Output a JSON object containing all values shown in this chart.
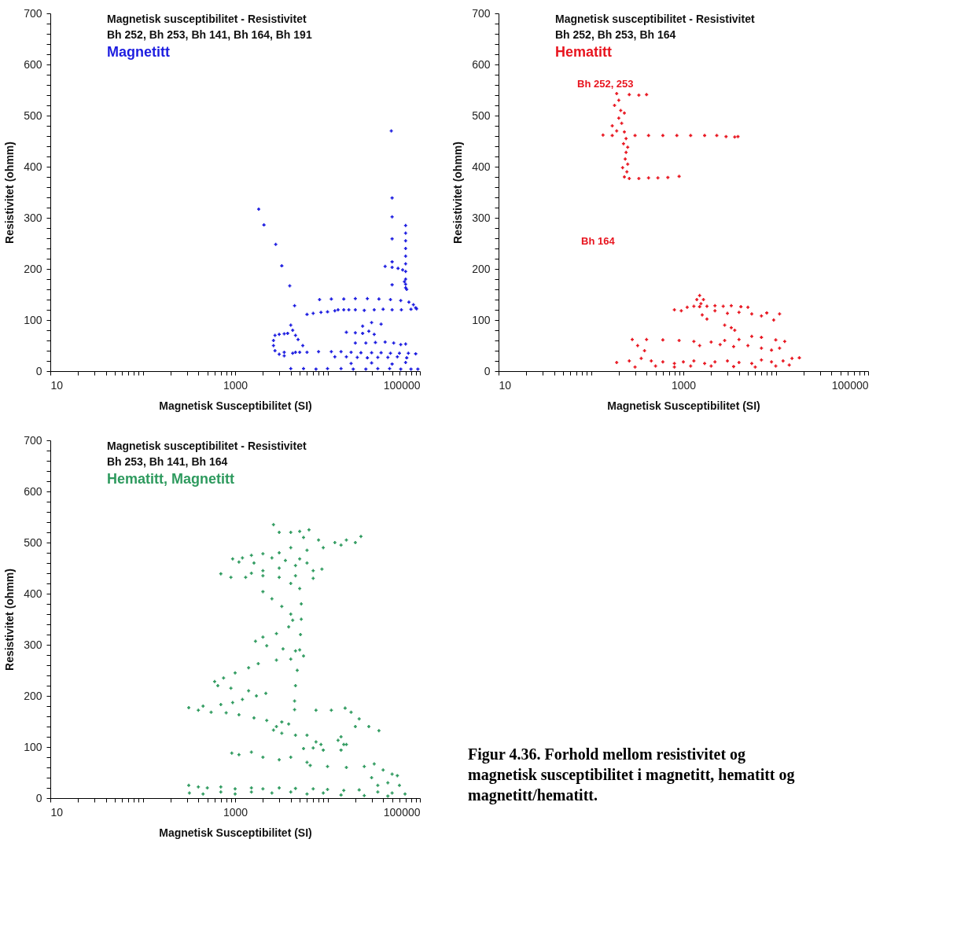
{
  "chart_data": [
    {
      "type": "scatter",
      "title": "Magnetisk susceptibilitet - Resistivitet",
      "subtitle": "Bh 252, Bh 253, Bh 141, Bh 164, Bh 191",
      "xlabel": "Magnetisk Susceptibilitet (SI)",
      "ylabel": "Resistivitet (ohmm)",
      "log": "x",
      "marker": "cross",
      "grid": false,
      "xlim": [
        10,
        100000
      ],
      "ylim": [
        0,
        700
      ],
      "xticks": [
        10,
        {
          "value": 20,
          "label": null
        },
        {
          "value": 30,
          "label": null
        },
        {
          "value": 40,
          "label": null
        },
        {
          "value": 50,
          "label": null
        },
        {
          "value": 60,
          "label": null
        },
        {
          "value": 70,
          "label": null
        },
        {
          "value": 80,
          "label": null
        },
        {
          "value": 90,
          "label": null
        },
        {
          "value": 100,
          "label": null
        },
        {
          "value": 200,
          "label": null
        },
        {
          "value": 300,
          "label": null
        },
        {
          "value": 400,
          "label": null
        },
        {
          "value": 500,
          "label": null
        },
        {
          "value": 600,
          "label": null
        },
        {
          "value": 700,
          "label": null
        },
        {
          "value": 800,
          "label": null
        },
        {
          "value": 900,
          "label": null
        },
        1000,
        {
          "value": 2000,
          "label": null
        },
        {
          "value": 3000,
          "label": null
        },
        {
          "value": 4000,
          "label": null
        },
        {
          "value": 5000,
          "label": null
        },
        {
          "value": 6000,
          "label": null
        },
        {
          "value": 7000,
          "label": null
        },
        {
          "value": 8000,
          "label": null
        },
        {
          "value": 9000,
          "label": null
        },
        {
          "value": 10000,
          "label": null
        },
        {
          "value": 20000,
          "label": null
        },
        {
          "value": 30000,
          "label": null
        },
        {
          "value": 40000,
          "label": null
        },
        {
          "value": 50000,
          "label": null
        },
        {
          "value": 60000,
          "label": null
        },
        {
          "value": 70000,
          "label": null
        },
        {
          "value": 80000,
          "label": null
        },
        {
          "value": 90000,
          "label": null
        },
        100000
      ],
      "yticks": [
        0,
        {
          "value": 20,
          "label": null
        },
        {
          "value": 40,
          "label": null
        },
        {
          "value": 60,
          "label": null
        },
        {
          "value": 80,
          "label": null
        },
        100,
        {
          "value": 120,
          "label": null
        },
        {
          "value": 140,
          "label": null
        },
        {
          "value": 160,
          "label": null
        },
        {
          "value": 180,
          "label": null
        },
        200,
        {
          "value": 220,
          "label": null
        },
        {
          "value": 240,
          "label": null
        },
        {
          "value": 260,
          "label": null
        },
        {
          "value": 280,
          "label": null
        },
        300,
        {
          "value": 320,
          "label": null
        },
        {
          "value": 340,
          "label": null
        },
        {
          "value": 360,
          "label": null
        },
        {
          "value": 380,
          "label": null
        },
        400,
        {
          "value": 420,
          "label": null
        },
        {
          "value": 440,
          "label": null
        },
        {
          "value": 460,
          "label": null
        },
        {
          "value": 480,
          "label": null
        },
        500,
        {
          "value": 520,
          "label": null
        },
        {
          "value": 540,
          "label": null
        },
        {
          "value": 560,
          "label": null
        },
        {
          "value": 580,
          "label": null
        },
        600,
        {
          "value": 620,
          "label": null
        },
        {
          "value": 640,
          "label": null
        },
        {
          "value": 660,
          "label": null
        },
        {
          "value": 680,
          "label": null
        },
        700
      ],
      "series": [
        {
          "name": "Magnetitt",
          "color": "#1c1ce0",
          "x": [
            1800,
            2050,
            2750,
            3200,
            3900,
            4400,
            49000,
            50000,
            50000,
            50000,
            50000,
            50000,
            70000,
            70000,
            70000,
            70000,
            70000,
            70000,
            70000,
            70000,
            70000,
            70000,
            72000,
            68000,
            42000,
            50000,
            58000,
            65000,
            8200,
            11000,
            15000,
            20000,
            27000,
            36000,
            48000,
            62000,
            76000,
            85000,
            90000,
            13000,
            15000,
            17000,
            20000,
            25000,
            32000,
            40000,
            50000,
            63000,
            80000,
            92000,
            6000,
            7000,
            8500,
            10000,
            12000,
            2700,
            3000,
            3400,
            3700,
            2600,
            2600,
            2700,
            3000,
            3400,
            4200,
            5000,
            5400,
            4800,
            4500,
            4200,
            4000,
            3400,
            4500,
            6000,
            8000,
            11000,
            14000,
            18000,
            23000,
            30000,
            38000,
            48000,
            60000,
            75000,
            90000,
            12000,
            16000,
            21000,
            27000,
            35000,
            45000,
            57000,
            72000,
            20000,
            26000,
            33000,
            42000,
            52000,
            62000,
            70000,
            16000,
            20000,
            24000,
            28000,
            32000,
            24000,
            30000,
            38000,
            4000,
            5500,
            7500,
            10000,
            14000,
            19000,
            26000,
            35000,
            47000,
            62000,
            80000,
            95000,
            18000,
            30000,
            50000,
            70000
          ],
          "values": [
            317,
            286,
            248,
            206,
            167,
            128,
            470,
            339,
            302,
            259,
            214,
            169,
            285,
            270,
            255,
            240,
            225,
            210,
            195,
            180,
            170,
            163,
            160,
            175,
            205,
            203,
            201,
            198,
            140,
            141,
            141,
            142,
            142,
            141,
            140,
            138,
            135,
            130,
            124,
            120,
            120,
            120,
            120,
            119,
            120,
            121,
            120,
            120,
            121,
            122,
            111,
            113,
            115,
            116,
            118,
            70,
            72,
            73,
            74,
            60,
            50,
            40,
            33,
            30,
            35,
            37,
            50,
            62,
            70,
            80,
            90,
            37,
            37,
            37,
            38,
            38,
            38,
            37,
            36,
            36,
            36,
            35,
            35,
            35,
            34,
            28,
            28,
            27,
            26,
            27,
            27,
            28,
            26,
            55,
            55,
            56,
            57,
            55,
            52,
            53,
            76,
            75,
            74,
            78,
            72,
            88,
            95,
            92,
            5,
            5,
            4,
            5,
            5,
            4,
            4,
            5,
            5,
            4,
            4,
            4,
            15,
            16,
            14,
            17
          ]
        }
      ]
    },
    {
      "type": "scatter",
      "title": "Magnetisk susceptibilitet - Resistivitet",
      "subtitle": "Bh 252, Bh 253, Bh 164",
      "xlabel": "Magnetisk Susceptibilitet (SI)",
      "ylabel": "Resistivitet (ohmm)",
      "log": "x",
      "marker": "cross",
      "grid": false,
      "annotations": [
        "Bh 252, 253",
        "Bh 164"
      ],
      "xlim": [
        10,
        100000
      ],
      "ylim": [
        0,
        700
      ],
      "xticks": [
        10,
        {
          "value": 20,
          "label": null
        },
        {
          "value": 30,
          "label": null
        },
        {
          "value": 40,
          "label": null
        },
        {
          "value": 50,
          "label": null
        },
        {
          "value": 60,
          "label": null
        },
        {
          "value": 70,
          "label": null
        },
        {
          "value": 80,
          "label": null
        },
        {
          "value": 90,
          "label": null
        },
        {
          "value": 100,
          "label": null
        },
        {
          "value": 200,
          "label": null
        },
        {
          "value": 300,
          "label": null
        },
        {
          "value": 400,
          "label": null
        },
        {
          "value": 500,
          "label": null
        },
        {
          "value": 600,
          "label": null
        },
        {
          "value": 700,
          "label": null
        },
        {
          "value": 800,
          "label": null
        },
        {
          "value": 900,
          "label": null
        },
        1000,
        {
          "value": 2000,
          "label": null
        },
        {
          "value": 3000,
          "label": null
        },
        {
          "value": 4000,
          "label": null
        },
        {
          "value": 5000,
          "label": null
        },
        {
          "value": 6000,
          "label": null
        },
        {
          "value": 7000,
          "label": null
        },
        {
          "value": 8000,
          "label": null
        },
        {
          "value": 9000,
          "label": null
        },
        {
          "value": 10000,
          "label": null
        },
        {
          "value": 20000,
          "label": null
        },
        {
          "value": 30000,
          "label": null
        },
        {
          "value": 40000,
          "label": null
        },
        {
          "value": 50000,
          "label": null
        },
        {
          "value": 60000,
          "label": null
        },
        {
          "value": 70000,
          "label": null
        },
        {
          "value": 80000,
          "label": null
        },
        {
          "value": 90000,
          "label": null
        },
        100000
      ],
      "yticks": [
        0,
        {
          "value": 20,
          "label": null
        },
        {
          "value": 40,
          "label": null
        },
        {
          "value": 60,
          "label": null
        },
        {
          "value": 80,
          "label": null
        },
        100,
        {
          "value": 120,
          "label": null
        },
        {
          "value": 140,
          "label": null
        },
        {
          "value": 160,
          "label": null
        },
        {
          "value": 180,
          "label": null
        },
        200,
        {
          "value": 220,
          "label": null
        },
        {
          "value": 240,
          "label": null
        },
        {
          "value": 260,
          "label": null
        },
        {
          "value": 280,
          "label": null
        },
        300,
        {
          "value": 320,
          "label": null
        },
        {
          "value": 340,
          "label": null
        },
        {
          "value": 360,
          "label": null
        },
        {
          "value": 380,
          "label": null
        },
        400,
        {
          "value": 420,
          "label": null
        },
        {
          "value": 440,
          "label": null
        },
        {
          "value": 460,
          "label": null
        },
        {
          "value": 480,
          "label": null
        },
        500,
        {
          "value": 520,
          "label": null
        },
        {
          "value": 540,
          "label": null
        },
        {
          "value": 560,
          "label": null
        },
        {
          "value": 580,
          "label": null
        },
        600,
        {
          "value": 620,
          "label": null
        },
        {
          "value": 640,
          "label": null
        },
        {
          "value": 660,
          "label": null
        },
        {
          "value": 680,
          "label": null
        },
        700
      ],
      "series": [
        {
          "name": "Hematitt",
          "color": "#e8141e",
          "x": [
            190,
            260,
            330,
            400,
            200,
            180,
            210,
            230,
            200,
            215,
            170,
            190,
            230,
            240,
            225,
            250,
            240,
            235,
            250,
            220,
            245,
            230,
            260,
            330,
            420,
            530,
            680,
            900,
            135,
            170,
            300,
            420,
            600,
            850,
            1200,
            1700,
            2300,
            2900,
            3600,
            3900,
            1500,
            1400,
            1650,
            1550,
            800,
            950,
            1100,
            1300,
            1500,
            1800,
            2200,
            2700,
            3300,
            4200,
            5000,
            4000,
            5500,
            8000,
            11000,
            7000,
            3000,
            2200,
            1600,
            1800,
            9500,
            2800,
            3300,
            3600,
            280,
            400,
            600,
            900,
            1300,
            2000,
            2800,
            4000,
            5500,
            7000,
            10000,
            12500,
            11000,
            9000,
            7000,
            5000,
            3500,
            2500,
            1500,
            320,
            380,
            190,
            260,
            350,
            450,
            600,
            800,
            1000,
            1300,
            1700,
            2200,
            3000,
            4000,
            5500,
            7000,
            9000,
            12000,
            15000,
            18000,
            300,
            500,
            800,
            1200,
            2000,
            3500,
            6000,
            10000,
            14000
          ],
          "values": [
            543,
            541,
            540,
            541,
            530,
            520,
            510,
            505,
            495,
            485,
            480,
            470,
            468,
            455,
            445,
            438,
            428,
            415,
            405,
            398,
            390,
            380,
            377,
            377,
            378,
            378,
            379,
            381,
            462,
            461,
            461,
            461,
            461,
            461,
            461,
            461,
            461,
            459,
            458,
            459,
            148,
            140,
            140,
            132,
            120,
            118,
            125,
            127,
            126,
            127,
            128,
            127,
            128,
            126,
            125,
            115,
            112,
            114,
            112,
            108,
            113,
            118,
            110,
            102,
            100,
            90,
            85,
            80,
            62,
            62,
            61,
            60,
            58,
            57,
            60,
            62,
            68,
            66,
            61,
            58,
            45,
            41,
            45,
            50,
            48,
            52,
            50,
            50,
            40,
            17,
            20,
            25,
            20,
            18,
            15,
            18,
            20,
            15,
            18,
            20,
            17,
            15,
            22,
            18,
            20,
            25,
            26,
            8,
            10,
            8,
            10,
            10,
            9,
            8,
            10,
            12
          ]
        }
      ]
    },
    {
      "type": "scatter",
      "title": "Magnetisk susceptibilitet - Resistivitet",
      "subtitle": "Bh 253, Bh 141, Bh 164",
      "xlabel": "Magnetisk Susceptibilitet (SI)",
      "ylabel": "Resistivitet (ohmm)",
      "log": "x",
      "marker": "cross",
      "grid": false,
      "annotations": [
        "Figur 4.36. Forhold mellom resistivitet og magnetisk susceptibilitet i magnetitt, hematitt og magnetitt/hematitt."
      ],
      "xlim": [
        10,
        100000
      ],
      "ylim": [
        0,
        700
      ],
      "xticks": [
        10,
        {
          "value": 20,
          "label": null
        },
        {
          "value": 30,
          "label": null
        },
        {
          "value": 40,
          "label": null
        },
        {
          "value": 50,
          "label": null
        },
        {
          "value": 60,
          "label": null
        },
        {
          "value": 70,
          "label": null
        },
        {
          "value": 80,
          "label": null
        },
        {
          "value": 90,
          "label": null
        },
        {
          "value": 100,
          "label": null
        },
        {
          "value": 200,
          "label": null
        },
        {
          "value": 300,
          "label": null
        },
        {
          "value": 400,
          "label": null
        },
        {
          "value": 500,
          "label": null
        },
        {
          "value": 600,
          "label": null
        },
        {
          "value": 700,
          "label": null
        },
        {
          "value": 800,
          "label": null
        },
        {
          "value": 900,
          "label": null
        },
        1000,
        {
          "value": 2000,
          "label": null
        },
        {
          "value": 3000,
          "label": null
        },
        {
          "value": 4000,
          "label": null
        },
        {
          "value": 5000,
          "label": null
        },
        {
          "value": 6000,
          "label": null
        },
        {
          "value": 7000,
          "label": null
        },
        {
          "value": 8000,
          "label": null
        },
        {
          "value": 9000,
          "label": null
        },
        {
          "value": 10000,
          "label": null
        },
        {
          "value": 20000,
          "label": null
        },
        {
          "value": 30000,
          "label": null
        },
        {
          "value": 40000,
          "label": null
        },
        {
          "value": 50000,
          "label": null
        },
        {
          "value": 60000,
          "label": null
        },
        {
          "value": 70000,
          "label": null
        },
        {
          "value": 80000,
          "label": null
        },
        {
          "value": 90000,
          "label": null
        },
        100000
      ],
      "yticks": [
        0,
        {
          "value": 20,
          "label": null
        },
        {
          "value": 40,
          "label": null
        },
        {
          "value": 60,
          "label": null
        },
        {
          "value": 80,
          "label": null
        },
        100,
        {
          "value": 120,
          "label": null
        },
        {
          "value": 140,
          "label": null
        },
        {
          "value": 160,
          "label": null
        },
        {
          "value": 180,
          "label": null
        },
        200,
        {
          "value": 220,
          "label": null
        },
        {
          "value": 240,
          "label": null
        },
        {
          "value": 260,
          "label": null
        },
        {
          "value": 280,
          "label": null
        },
        300,
        {
          "value": 320,
          "label": null
        },
        {
          "value": 340,
          "label": null
        },
        {
          "value": 360,
          "label": null
        },
        {
          "value": 380,
          "label": null
        },
        400,
        {
          "value": 420,
          "label": null
        },
        {
          "value": 440,
          "label": null
        },
        {
          "value": 460,
          "label": null
        },
        {
          "value": 480,
          "label": null
        },
        500,
        {
          "value": 520,
          "label": null
        },
        {
          "value": 540,
          "label": null
        },
        {
          "value": 560,
          "label": null
        },
        {
          "value": 580,
          "label": null
        },
        600,
        {
          "value": 620,
          "label": null
        },
        {
          "value": 640,
          "label": null
        },
        {
          "value": 660,
          "label": null
        },
        {
          "value": 680,
          "label": null
        },
        700
      ],
      "series": [
        {
          "name": "Hematitt, Magnetitt",
          "color": "#2e9a5e",
          "x": [
            2600,
            3000,
            4000,
            5000,
            6300,
            5500,
            8000,
            12000,
            16000,
            23000,
            20000,
            14000,
            9000,
            6000,
            4000,
            3000,
            2000,
            1500,
            1200,
            940,
            1100,
            1600,
            2500,
            3500,
            5000,
            6000,
            4500,
            3000,
            2000,
            1500,
            700,
            900,
            1300,
            2000,
            3000,
            4500,
            7000,
            8700,
            7000,
            4000,
            2000,
            2500,
            3200,
            4000,
            4200,
            3800,
            2800,
            2000,
            1660,
            2200,
            3300,
            4500,
            5500,
            4000,
            2800,
            1780,
            1400,
            1000,
            750,
            600,
            650,
            900,
            1400,
            2150,
            1700,
            1200,
            940,
            700,
            450,
            315,
            400,
            550,
            800,
            1100,
            1600,
            2200,
            3200,
            3800,
            2800,
            2600,
            3200,
            4500,
            6000,
            7500,
            8500,
            7000,
            5500,
            9000,
            14000,
            15000,
            13000,
            14000,
            16000,
            20000,
            36000,
            28000,
            22000,
            18000,
            15500,
            11000,
            7500,
            4400,
            5000,
            5200,
            5200,
            5100,
            5000,
            4700,
            4500,
            4400,
            920,
            1100,
            1500,
            2000,
            3000,
            4000,
            6000,
            6500,
            10000,
            16000,
            25000,
            32000,
            40000,
            50000,
            57000,
            30000,
            45000,
            60000,
            35000,
            315,
            400,
            500,
            700,
            1000,
            1500,
            2000,
            3000,
            4500,
            7000,
            10000,
            15000,
            22000,
            35000,
            50000,
            69000,
            320,
            450,
            700,
            1000,
            1500,
            2500,
            4000,
            6000,
            9000,
            14000,
            25000,
            45000
          ],
          "values": [
            535,
            520,
            520,
            522,
            525,
            510,
            505,
            500,
            505,
            512,
            500,
            495,
            490,
            485,
            490,
            480,
            478,
            475,
            470,
            468,
            462,
            460,
            470,
            465,
            468,
            460,
            455,
            450,
            445,
            440,
            439,
            432,
            432,
            435,
            432,
            435,
            445,
            448,
            430,
            420,
            404,
            390,
            375,
            360,
            348,
            335,
            322,
            315,
            307,
            298,
            292,
            288,
            278,
            272,
            270,
            263,
            255,
            245,
            235,
            228,
            220,
            215,
            210,
            205,
            200,
            193,
            187,
            183,
            180,
            177,
            172,
            168,
            167,
            163,
            157,
            152,
            149,
            145,
            140,
            133,
            127,
            123,
            123,
            110,
            105,
            98,
            97,
            94,
            94,
            105,
            113,
            120,
            105,
            140,
            132,
            140,
            155,
            168,
            176,
            172,
            172,
            173,
            410,
            380,
            350,
            320,
            290,
            250,
            220,
            190,
            88,
            85,
            90,
            80,
            75,
            80,
            70,
            64,
            62,
            60,
            62,
            67,
            55,
            47,
            44,
            40,
            30,
            25,
            25,
            25,
            22,
            20,
            22,
            18,
            20,
            18,
            20,
            19,
            18,
            17,
            15,
            16,
            12,
            10,
            8,
            10,
            8,
            12,
            8,
            12,
            10,
            12,
            8,
            10,
            6,
            5,
            4
          ]
        }
      ]
    }
  ]
}
